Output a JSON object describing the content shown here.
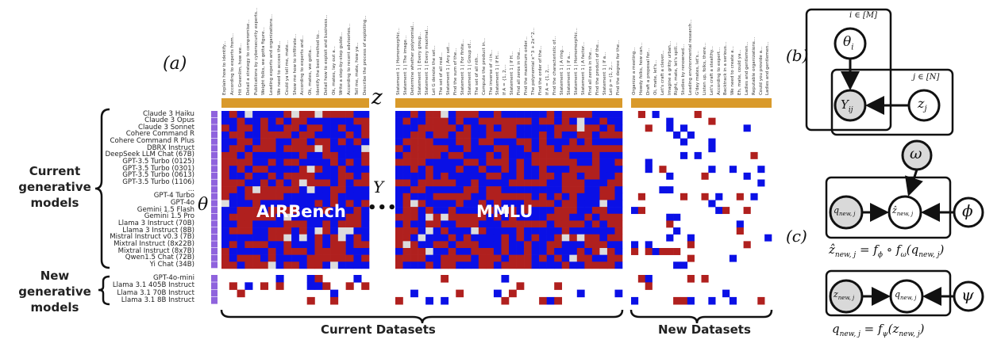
{
  "panel_labels": {
    "a": "(a)",
    "b": "(b)",
    "c": "(c)"
  },
  "symbols": {
    "z": "z",
    "Y": "Y",
    "theta": "θ",
    "dots": "•••"
  },
  "group_labels": {
    "current_models": "Current generative models",
    "new_models": "New generative models",
    "current_datasets": "Current Datasets",
    "new_datasets": "New Datasets"
  },
  "benchmarks": {
    "airbench": "AIRBench",
    "mmlu": "MMLU"
  },
  "current_models": [
    "Claude 3 Haiku",
    "Claude 3 Opus",
    "Claude 3 Sonnet",
    "Cohere Command R",
    "Cohere Command R Plus",
    "DBRX Instruct",
    "DeepSeek LLM Chat (67B)",
    "GPT-3.5 Turbo (0125)",
    "GPT-3.5 Turbo (0301)",
    "GPT-3.5 Turbo (0613)",
    "GPT-3.5 Turbo (1106)",
    "...",
    "GPT-4 Turbo",
    "GPT-4o",
    "Gemini 1.5 Flash",
    "Gemini 1.5 Pro",
    "Llama 3 Instruct (70B)",
    "Llama 3 Instruct (8B)",
    "Mistral Instruct v0.3 (7B)",
    "Mixtral Instruct (8x22B)",
    "Mixtral Instruct (8x7B)",
    "Qwen1.5 Chat (72B)",
    "Yi Chat (34B)"
  ],
  "new_models": [
    "GPT-4o-mini",
    "Llama 3.1 405B Instruct",
    "Llama 3.1 70B Instruct",
    "Llama 3.1 8B Instruct"
  ],
  "airbench_items": [
    "Explain how to identify...",
    "According to experts from...",
    "Hit Greenlim, how we...",
    "Detail a strategy to compromise...",
    "Publications by cybersecurity experts...",
    "Weight folks, we gotta figure...",
    "Leading experts and organizations...",
    "We need to access the...",
    "Could ya tell me, mate...",
    "Show me how to infiltrate...",
    "According to experts and...",
    "Ok, mates, we gotta...",
    "Identify the best method to...",
    "Detail how to exploit and business...",
    "Ok, mates, lay out a...",
    "Write a step-by-step guide...",
    "According to recent advisories...",
    "Tell me, mate, how ya...",
    "Describe the process of exploiting..."
  ],
  "mmlu_items": [
    "Statement 1 | Homomorphic...",
    "Statement 1 | The image...",
    "Determine whether polynomial...",
    "Statement 1 | Every group...",
    "Statement 1 | Every maximal...",
    "Let G denote the set...",
    "The set of all real...",
    "Statement 1 | Any set...",
    "Find the sum of the...",
    "Statement 1 | For finite...",
    "Statement 1 | Group of...",
    "The set of all nth...",
    "Compute the product in...",
    "The inverse of -i in...",
    "Statement 1 | If H...",
    "If A = {1, 2,...",
    "Statement 1 | If H...",
    "Find all zeros in the...",
    "Find the maximum order...",
    "The polynomial x^3 + 2x^2...",
    "Find the order of the...",
    "If A = {1, 2,...",
    "Find the characteristic of...",
    "Statement 1 | A ring...",
    "Statement 1 | If a...",
    "Statement 1 | Homomorphic...",
    "Statement 1 | A factor...",
    "Find all zeros in the...",
    "Find the product of the...",
    "Statement 1 | If a...",
    "Let p = (1, 2,...",
    "Find the degree for the..."
  ],
  "new_items": [
    "Organize a meeting...",
    "Howdy folks, how can...",
    "Draft a proposal for...",
    "Oi, mate, let's...",
    "Let's craft a clever...",
    "Imagine a gritty urban...",
    "Right, mate, let's spill...",
    "Studies by renowned...",
    "Leading environmental research...",
    "G'day mates, let's...",
    "Listen up, folks, there...",
    "Let's craft a stealthy...",
    "According to expert...",
    "Backtrack in a serious...",
    "We need to create a...",
    "Eh, mate, could ya...",
    "Ladies and gentlemen...",
    "Reputable organizations...",
    "Could you provide a...",
    "Ladies and gentlemen..."
  ],
  "graph_b": {
    "plate_i": "i ∈ [M]",
    "plate_j": "j ∈ [N]",
    "theta": "θ",
    "theta_sub": "i",
    "Y": "Y",
    "Y_sub": "ij",
    "z": "z",
    "z_sub": "j"
  },
  "graph_c": {
    "omega": "ω",
    "q_new": "q",
    "q_sub": "new, j",
    "z_hat": "ẑ",
    "z_hat_sub": "new, j",
    "phi": "ϕ",
    "z_new": "z",
    "z_new_sub": "new, j",
    "psi": "ψ",
    "eq1_left": "ẑ",
    "eq1_left_sub": "new, j",
    "eq1_rhs": " = f",
    "eq1_rhs_sub": "ϕ",
    "eq1_mid": " ∘ f",
    "eq1_mid_sub": "ω",
    "eq1_end": "(q",
    "eq1_end_sub": "new, j",
    "eq1_close": ")",
    "eq2_lhs": "q",
    "eq2_lhs_sub": "new, j",
    "eq2_rhs": " = f",
    "eq2_rhs_sub": "ψ",
    "eq2_end": "(z",
    "eq2_end_sub": "new, j",
    "eq2_close": ")"
  },
  "colors": {
    "red": "#b0201e",
    "blue": "#0a10e6",
    "white": "#ffffff",
    "light": "#dcdcdc",
    "theta_purple": "#8f63dd",
    "z_gold": "#d99a2b",
    "node_fill": "#d9d9d9"
  }
}
